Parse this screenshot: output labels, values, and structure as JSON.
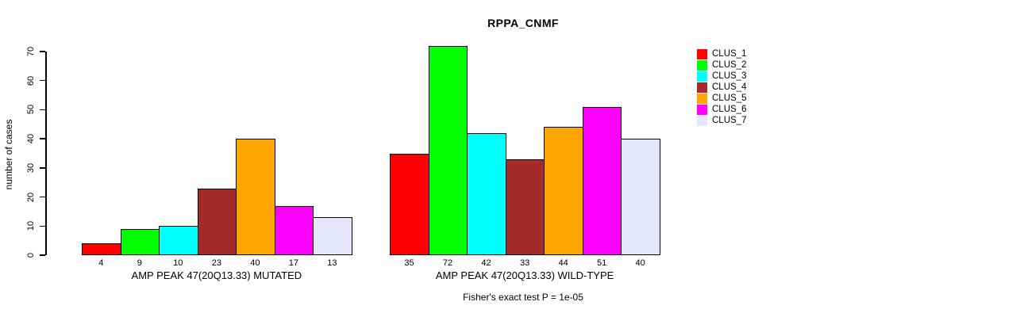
{
  "chart_data": {
    "type": "bar",
    "title": "RPPA_CNMF",
    "ylabel": "number of cases",
    "xlabel": "",
    "ylim": [
      0,
      70
    ],
    "yticks": [
      0,
      10,
      20,
      30,
      40,
      50,
      60,
      70
    ],
    "grid": false,
    "legend_position": "right",
    "categories": [
      "AMP PEAK 47(20Q13.33) MUTATED",
      "AMP PEAK 47(20Q13.33) WILD-TYPE"
    ],
    "series": [
      {
        "name": "CLUS_1",
        "color": "#FF0000",
        "values": [
          4,
          35
        ]
      },
      {
        "name": "CLUS_2",
        "color": "#00FF00",
        "values": [
          9,
          72
        ]
      },
      {
        "name": "CLUS_3",
        "color": "#00FFFF",
        "values": [
          10,
          42
        ]
      },
      {
        "name": "CLUS_4",
        "color": "#A52A2A",
        "values": [
          23,
          33
        ]
      },
      {
        "name": "CLUS_5",
        "color": "#FFA500",
        "values": [
          40,
          44
        ]
      },
      {
        "name": "CLUS_6",
        "color": "#FF00FF",
        "values": [
          17,
          51
        ]
      },
      {
        "name": "CLUS_7",
        "color": "#E6E6FA",
        "values": [
          13,
          40
        ]
      }
    ],
    "bar_value_labels_shown": true,
    "annotation": "Fisher's exact test P = 1e-05"
  }
}
